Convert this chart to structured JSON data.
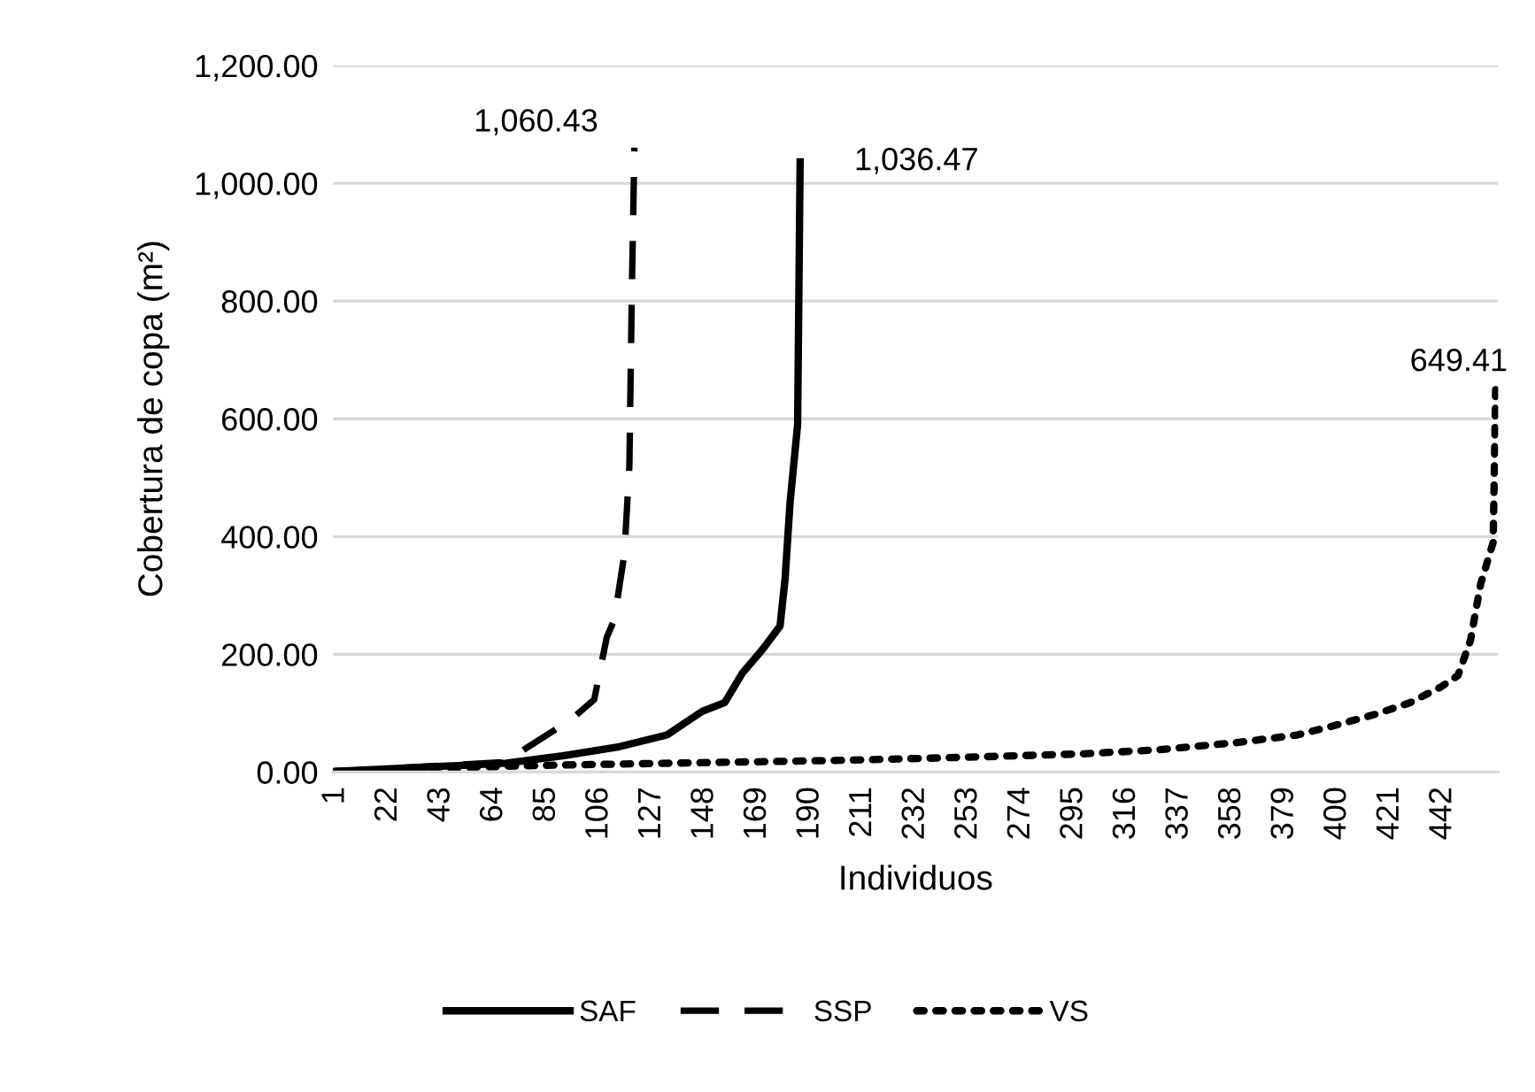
{
  "chart_data": {
    "type": "line",
    "xlabel": "Individuos",
    "ylabel": "Cobertura de copa (m²)",
    "xlim": [
      0,
      464
    ],
    "xticks": [
      1,
      22,
      43,
      64,
      85,
      106,
      127,
      148,
      169,
      190,
      211,
      232,
      253,
      274,
      295,
      316,
      337,
      358,
      379,
      400,
      421,
      442
    ],
    "ylim": [
      0,
      1200
    ],
    "yticks": [
      {
        "value": 0,
        "label": "0.00"
      },
      {
        "value": 200,
        "label": "200.00"
      },
      {
        "value": 400,
        "label": "400.00"
      },
      {
        "value": 600,
        "label": "600.00"
      },
      {
        "value": 800,
        "label": "800.00"
      },
      {
        "value": 1000,
        "label": "1,000.00"
      },
      {
        "value": 1200,
        "label": "1,200.00"
      }
    ],
    "grid": "y",
    "legend": "bottom",
    "series": [
      {
        "name": "SAF",
        "color": "#000000",
        "line_style": "solid",
        "x": [
          1,
          69,
          92,
          114,
          133,
          147,
          156,
          163,
          171,
          178,
          180,
          182,
          185,
          186
        ],
        "values": [
          1,
          15,
          28,
          43,
          63,
          103,
          118,
          168,
          208,
          248,
          328,
          458,
          590,
          1036.47
        ]
      },
      {
        "name": "SSP",
        "color": "#000000",
        "line_style": "dashed",
        "x": [
          1,
          69,
          76,
          95,
          104,
          109,
          112,
          116,
          118,
          119,
          120
        ],
        "values": [
          1,
          17,
          38,
          90,
          123,
          229,
          259,
          370,
          520,
          822,
          1060.43
        ]
      },
      {
        "name": "VS",
        "color": "#000000",
        "line_style": "dotted",
        "x": [
          1,
          70,
          92,
          204,
          251,
          299,
          329,
          360,
          384,
          398,
          415,
          429,
          441,
          448,
          453,
          457,
          462,
          463
        ],
        "values": [
          1,
          10,
          12,
          20,
          25,
          31,
          38,
          50,
          63,
          78,
          98,
          118,
          144,
          164,
          224,
          319,
          390,
          649.41
        ]
      }
    ],
    "annotations": [
      {
        "text": "1,060.43",
        "x": 120,
        "y": 1060.43
      },
      {
        "text": "1,036.47",
        "x": 186,
        "y": 1036.47
      },
      {
        "text": "649.41",
        "x": 463,
        "y": 649.41
      }
    ]
  }
}
